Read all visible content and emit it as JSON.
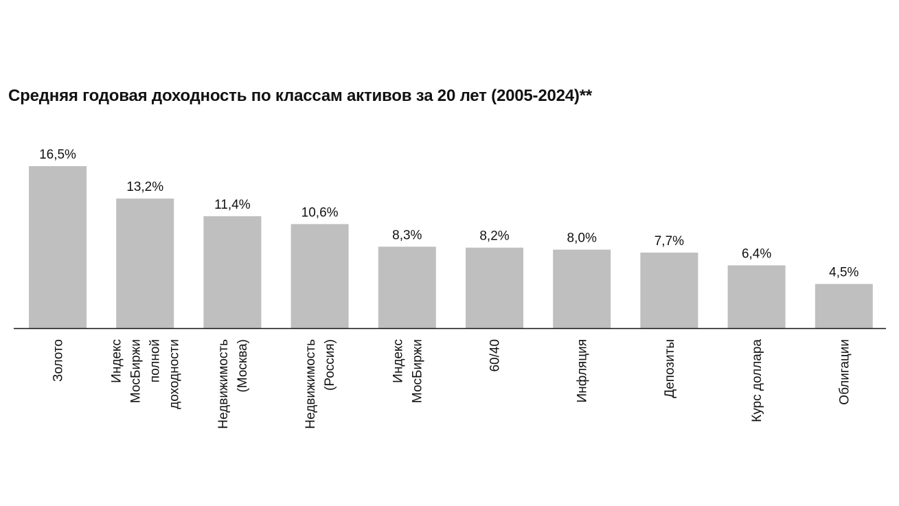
{
  "chart_data": {
    "type": "bar",
    "title": "Средняя годовая доходность по классам активов за 20 лет (2005-2024)**",
    "categories": [
      "Золото",
      "Индекс МосБиржи полной доходности",
      "Недвижимость (Москва)",
      "Недвижимость (Россия)",
      "Индекс МосБиржи",
      "60/40",
      "Инфляция",
      "Депозиты",
      "Курс доллара",
      "Облигации"
    ],
    "category_lines": [
      [
        "Золото"
      ],
      [
        "Индекс",
        "МосБиржи",
        "полной",
        "доходности"
      ],
      [
        "Недвижимость",
        "(Москва)"
      ],
      [
        "Недвижимость",
        "(Россия)"
      ],
      [
        "Индекс",
        "МосБиржи"
      ],
      [
        "60/40"
      ],
      [
        "Инфляция"
      ],
      [
        "Депозиты"
      ],
      [
        "Курс доллара"
      ],
      [
        "Облигации"
      ]
    ],
    "values": [
      16.5,
      13.2,
      11.4,
      10.6,
      8.3,
      8.2,
      8.0,
      7.7,
      6.4,
      4.5
    ],
    "data_labels": [
      "16,5%",
      "13,2%",
      "11,4%",
      "10,6%",
      "8,3%",
      "8,2%",
      "8,0%",
      "7,7%",
      "6,4%",
      "4,5%"
    ],
    "xlabel": "",
    "ylabel": "",
    "ylim": [
      0,
      16.5
    ],
    "grid": false,
    "legend": "none",
    "bar_color": "#bfbfbf",
    "axis_color": "#111111",
    "text_color": "#111111"
  }
}
